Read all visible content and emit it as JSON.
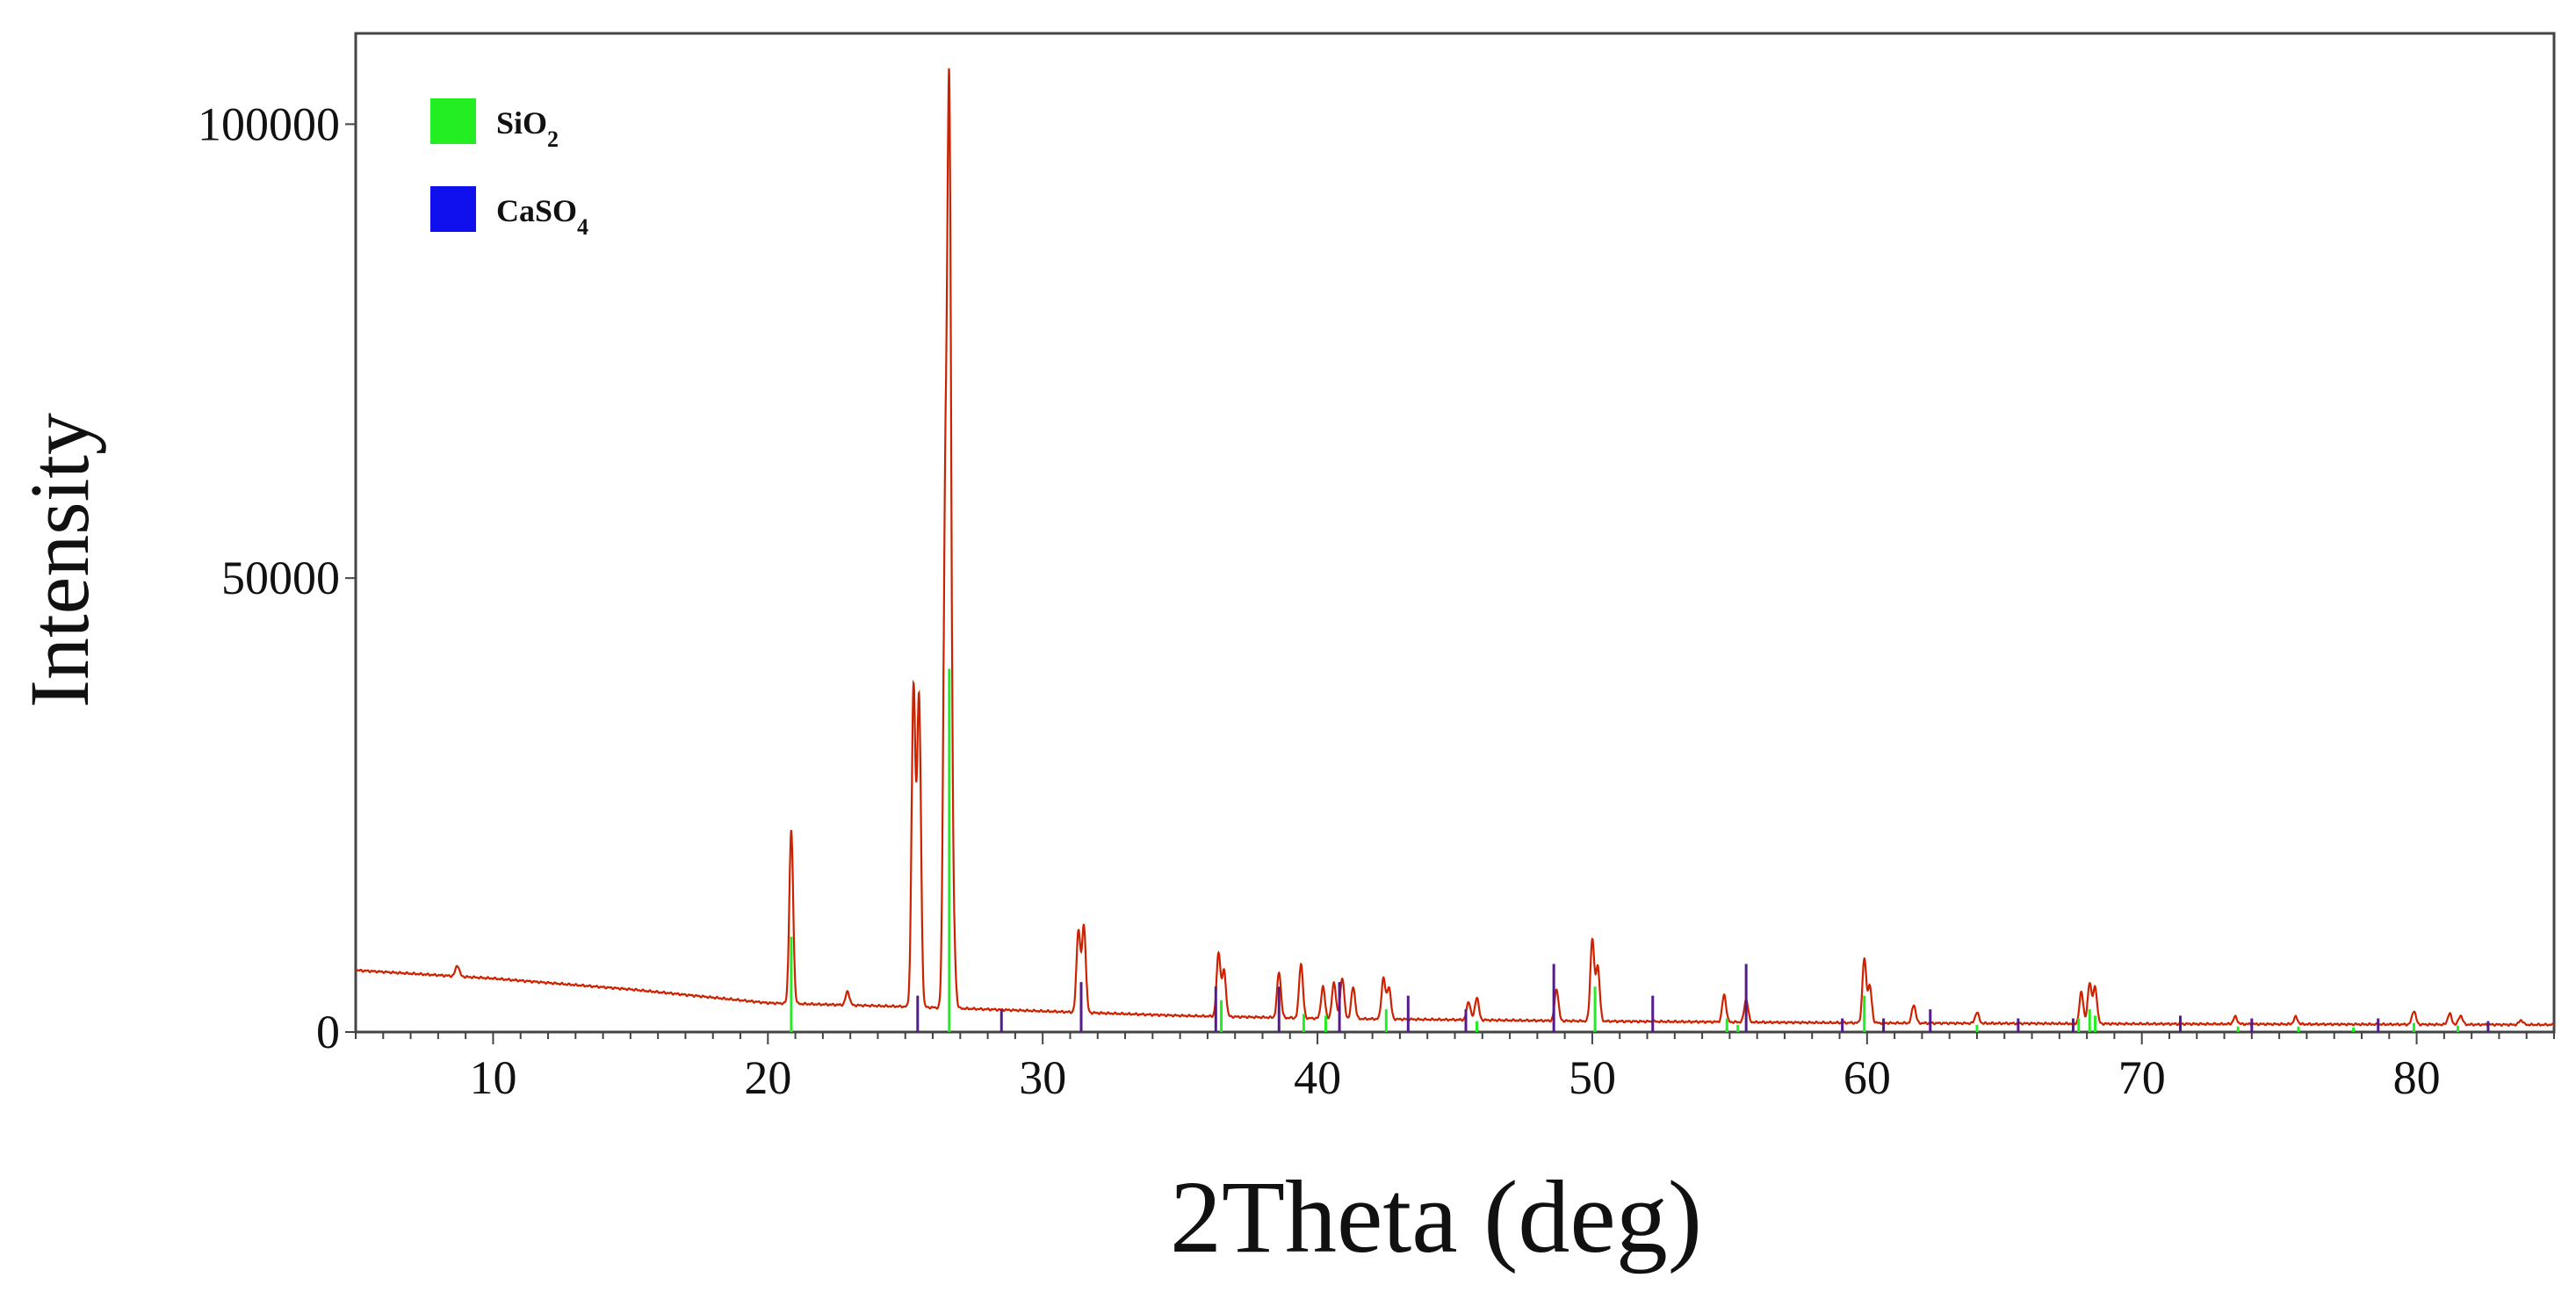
{
  "chart_data": {
    "type": "line",
    "title": "",
    "xlabel": "2Theta (deg)",
    "ylabel": "Intensity",
    "xlim": [
      5,
      85
    ],
    "ylim": [
      0,
      110000
    ],
    "x_ticks": [
      10,
      20,
      30,
      40,
      50,
      60,
      70,
      80
    ],
    "y_ticks": [
      0,
      50000,
      100000
    ],
    "grid": false,
    "legend_position": "top-left",
    "legend": [
      {
        "name": "SiO",
        "sub": "2",
        "color": "#22ee22"
      },
      {
        "name": "CaSO",
        "sub": "4",
        "color": "#1010ee"
      }
    ],
    "trace_color": "#cc2200",
    "baseline": [
      [
        5,
        6800
      ],
      [
        10,
        5900
      ],
      [
        15,
        4700
      ],
      [
        20,
        3200
      ],
      [
        25,
        2800
      ],
      [
        30,
        2300
      ],
      [
        35,
        1800
      ],
      [
        40,
        1500
      ],
      [
        50,
        1200
      ],
      [
        60,
        1000
      ],
      [
        70,
        900
      ],
      [
        85,
        800
      ]
    ],
    "peaks": [
      [
        8.7,
        1200
      ],
      [
        20.85,
        19000
      ],
      [
        22.9,
        1500
      ],
      [
        25.3,
        35000
      ],
      [
        25.5,
        34000
      ],
      [
        26.45,
        51000
      ],
      [
        26.6,
        97000
      ],
      [
        26.75,
        8000
      ],
      [
        31.3,
        9000
      ],
      [
        31.5,
        9500
      ],
      [
        36.4,
        7000
      ],
      [
        36.6,
        5000
      ],
      [
        38.6,
        5000
      ],
      [
        39.4,
        6000
      ],
      [
        40.2,
        3500
      ],
      [
        40.6,
        4000
      ],
      [
        40.9,
        4500
      ],
      [
        41.3,
        3500
      ],
      [
        42.4,
        4500
      ],
      [
        42.6,
        3500
      ],
      [
        45.5,
        2000
      ],
      [
        45.8,
        2500
      ],
      [
        48.7,
        3500
      ],
      [
        50.0,
        9000
      ],
      [
        50.2,
        6000
      ],
      [
        54.8,
        3000
      ],
      [
        55.6,
        2500
      ],
      [
        59.9,
        7000
      ],
      [
        60.1,
        4000
      ],
      [
        61.7,
        2000
      ],
      [
        64.0,
        1200
      ],
      [
        67.8,
        3500
      ],
      [
        68.1,
        4500
      ],
      [
        68.3,
        4000
      ],
      [
        73.4,
        800
      ],
      [
        75.6,
        800
      ],
      [
        79.9,
        1500
      ],
      [
        81.2,
        1200
      ],
      [
        81.6,
        1000
      ],
      [
        83.8,
        500
      ]
    ],
    "sio2_sticks": [
      [
        20.85,
        10500
      ],
      [
        26.6,
        40000
      ],
      [
        36.5,
        3500
      ],
      [
        39.5,
        2000
      ],
      [
        40.3,
        1800
      ],
      [
        42.5,
        2500
      ],
      [
        45.8,
        1200
      ],
      [
        50.1,
        5000
      ],
      [
        54.9,
        1500
      ],
      [
        55.3,
        800
      ],
      [
        59.9,
        4000
      ],
      [
        64.0,
        800
      ],
      [
        67.7,
        1500
      ],
      [
        68.1,
        2500
      ],
      [
        68.3,
        1800
      ],
      [
        73.5,
        600
      ],
      [
        75.7,
        600
      ],
      [
        77.7,
        500
      ],
      [
        79.9,
        1000
      ],
      [
        81.5,
        700
      ]
    ],
    "caso4_sticks": [
      [
        25.45,
        4000
      ],
      [
        28.5,
        2500
      ],
      [
        31.4,
        5500
      ],
      [
        36.3,
        5000
      ],
      [
        38.6,
        5000
      ],
      [
        40.8,
        5500
      ],
      [
        43.3,
        4000
      ],
      [
        45.4,
        2500
      ],
      [
        48.6,
        7500
      ],
      [
        52.2,
        4000
      ],
      [
        55.6,
        7500
      ],
      [
        59.1,
        1500
      ],
      [
        60.6,
        1500
      ],
      [
        62.3,
        2500
      ],
      [
        65.5,
        1500
      ],
      [
        67.5,
        1500
      ],
      [
        71.4,
        1800
      ],
      [
        74.0,
        1500
      ],
      [
        78.6,
        1500
      ],
      [
        82.6,
        1200
      ]
    ]
  }
}
